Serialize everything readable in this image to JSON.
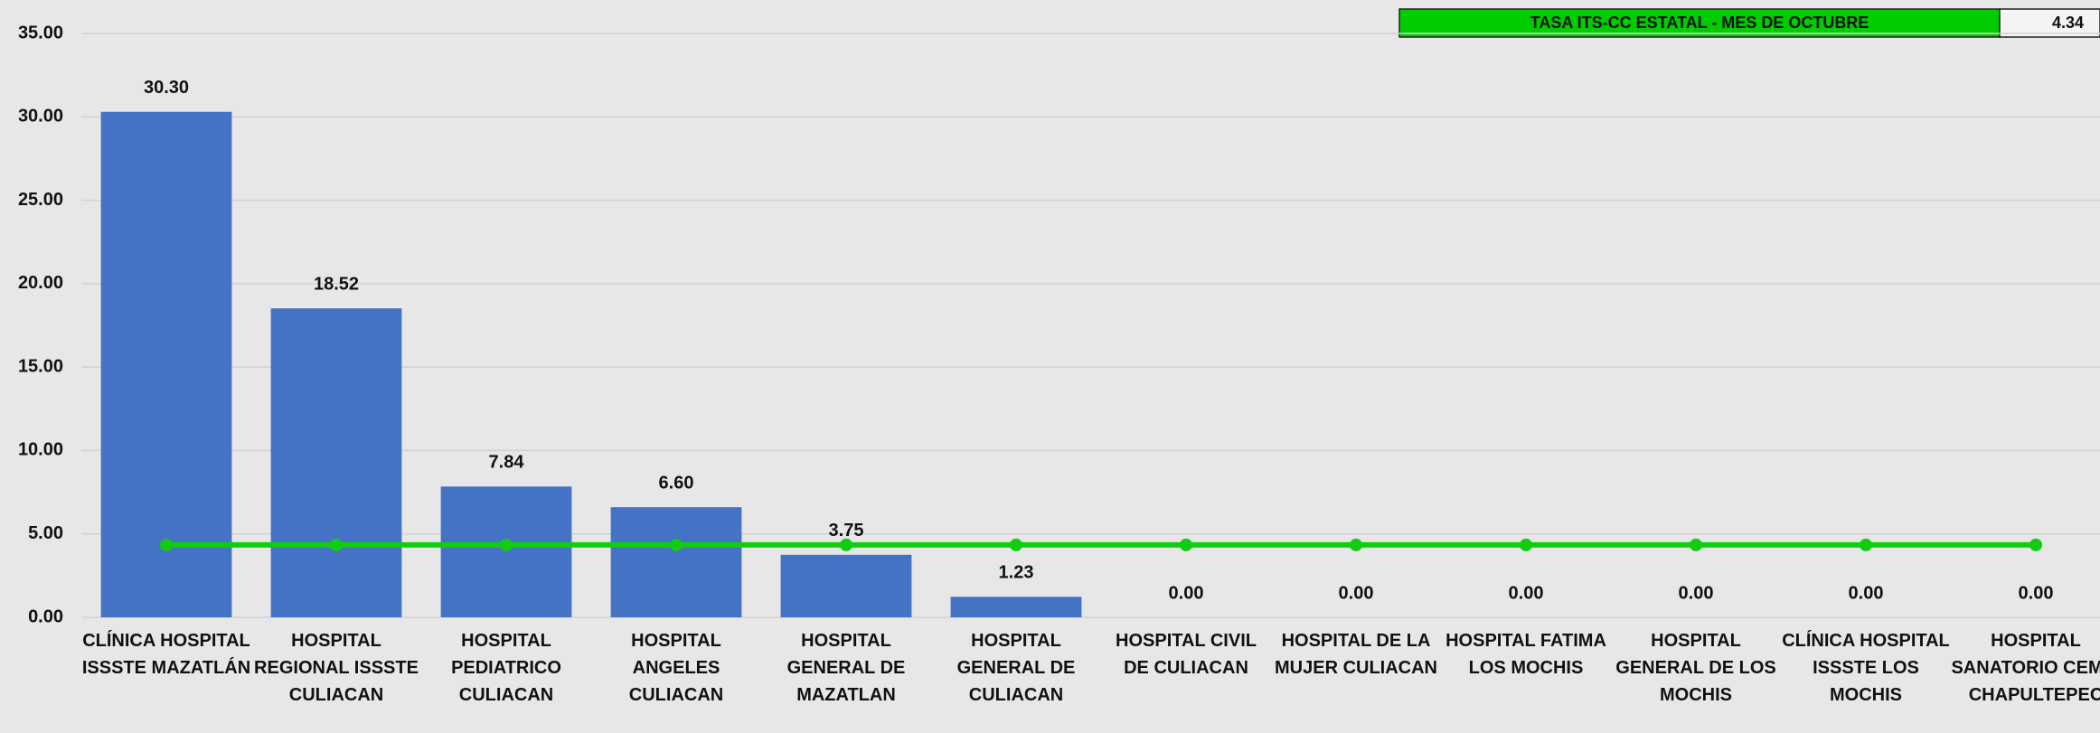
{
  "chart_data": {
    "type": "bar",
    "categories": [
      "CLÍNICA HOSPITAL ISSSTE MAZATLÁN",
      "HOSPITAL REGIONAL ISSSTE CULIACAN",
      "HOSPITAL PEDIATRICO CULIACAN",
      "HOSPITAL ANGELES CULIACAN",
      "HOSPITAL GENERAL DE MAZATLAN",
      "HOSPITAL GENERAL DE CULIACAN",
      "HOSPITAL CIVIL DE CULIACAN",
      "HOSPITAL DE LA MUJER CULIACAN",
      "HOSPITAL FATIMA LOS MOCHIS",
      "HOSPITAL GENERAL DE LOS MOCHIS",
      "CLÍNICA HOSPITAL ISSSTE LOS MOCHIS",
      "HOSPITAL SANATORIO CEMSI CHAPULTEPEC"
    ],
    "series": [
      {
        "type": "bar",
        "color": "#4472c4",
        "values": [
          30.3,
          18.52,
          7.84,
          6.6,
          3.75,
          1.23,
          0,
          0,
          0,
          0,
          0,
          0
        ],
        "value_labels": [
          "30.30",
          "18.52",
          "7.84",
          "6.60",
          "3.75",
          "1.23",
          "0.00",
          "0.00",
          "0.00",
          "0.00",
          "0.00",
          "0.00"
        ]
      },
      {
        "type": "line",
        "name": "TASA ITS-CC ESTATAL - MES DE OCTUBRE",
        "color": "#11cc11",
        "values": [
          4.34,
          4.34,
          4.34,
          4.34,
          4.34,
          4.34,
          4.34,
          4.34,
          4.34,
          4.34,
          4.34,
          4.34
        ]
      }
    ],
    "ylim": [
      0,
      35
    ],
    "yticks": [
      {
        "value": 0,
        "label": "0.00"
      },
      {
        "value": 5,
        "label": "5.00"
      },
      {
        "value": 10,
        "label": "10.00"
      },
      {
        "value": 15,
        "label": "15.00"
      },
      {
        "value": 20,
        "label": "20.00"
      },
      {
        "value": 25,
        "label": "25.00"
      },
      {
        "value": 30,
        "label": "30.00"
      },
      {
        "value": 35,
        "label": "35.00"
      }
    ],
    "grid": true
  }
}
